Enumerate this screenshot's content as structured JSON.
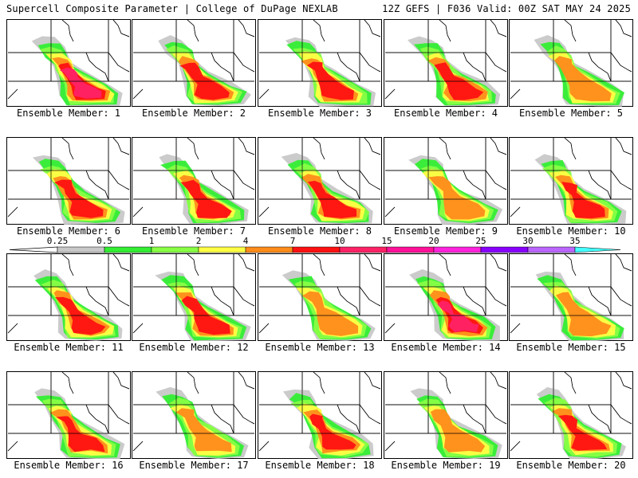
{
  "header": {
    "left": "Supercell Composite Parameter | College of DuPage NEXLAB",
    "right": "12Z GEFS | F036 Valid: 00Z SAT MAY 24 2025"
  },
  "members": [
    {
      "caption": "Ensemble Member: 1",
      "number": 1,
      "intensity": 0.9
    },
    {
      "caption": "Ensemble Member: 2",
      "number": 2,
      "intensity": 0.75
    },
    {
      "caption": "Ensemble Member: 3",
      "number": 3,
      "intensity": 0.85
    },
    {
      "caption": "Ensemble Member: 4",
      "number": 4,
      "intensity": 0.85
    },
    {
      "caption": "Ensemble Member: 5",
      "number": 5,
      "intensity": 0.7
    },
    {
      "caption": "Ensemble Member: 6",
      "number": 6,
      "intensity": 0.85
    },
    {
      "caption": "Ensemble Member: 7",
      "number": 7,
      "intensity": 0.75
    },
    {
      "caption": "Ensemble Member: 8",
      "number": 8,
      "intensity": 0.75
    },
    {
      "caption": "Ensemble Member: 9",
      "number": 9,
      "intensity": 0.7
    },
    {
      "caption": "Ensemble Member: 10",
      "number": 10,
      "intensity": 0.75
    },
    {
      "caption": "Ensemble Member: 11",
      "number": 11,
      "intensity": 0.85
    },
    {
      "caption": "Ensemble Member: 12",
      "number": 12,
      "intensity": 0.75
    },
    {
      "caption": "Ensemble Member: 13",
      "number": 13,
      "intensity": 0.65
    },
    {
      "caption": "Ensemble Member: 14",
      "number": 14,
      "intensity": 0.95
    },
    {
      "caption": "Ensemble Member: 15",
      "number": 15,
      "intensity": 0.7
    },
    {
      "caption": "Ensemble Member: 16",
      "number": 16,
      "intensity": 0.75
    },
    {
      "caption": "Ensemble Member: 17",
      "number": 17,
      "intensity": 0.7
    },
    {
      "caption": "Ensemble Member: 18",
      "number": 18,
      "intensity": 0.75
    },
    {
      "caption": "Ensemble Member: 19",
      "number": 19,
      "intensity": 0.7
    },
    {
      "caption": "Ensemble Member: 20",
      "number": 20,
      "intensity": 0.8
    }
  ],
  "colorbar": {
    "levels": [
      "0.25",
      "0.5",
      "1",
      "2",
      "4",
      "7",
      "10",
      "15",
      "20",
      "25",
      "30",
      "35"
    ],
    "colors": [
      "#c8c8c8",
      "#33ee33",
      "#88ff44",
      "#ffff44",
      "#ff8c1a",
      "#ff1111",
      "#ff2266",
      "#ff1199",
      "#ff22dd",
      "#8800ff",
      "#bb66ff",
      "#44ffff"
    ]
  }
}
